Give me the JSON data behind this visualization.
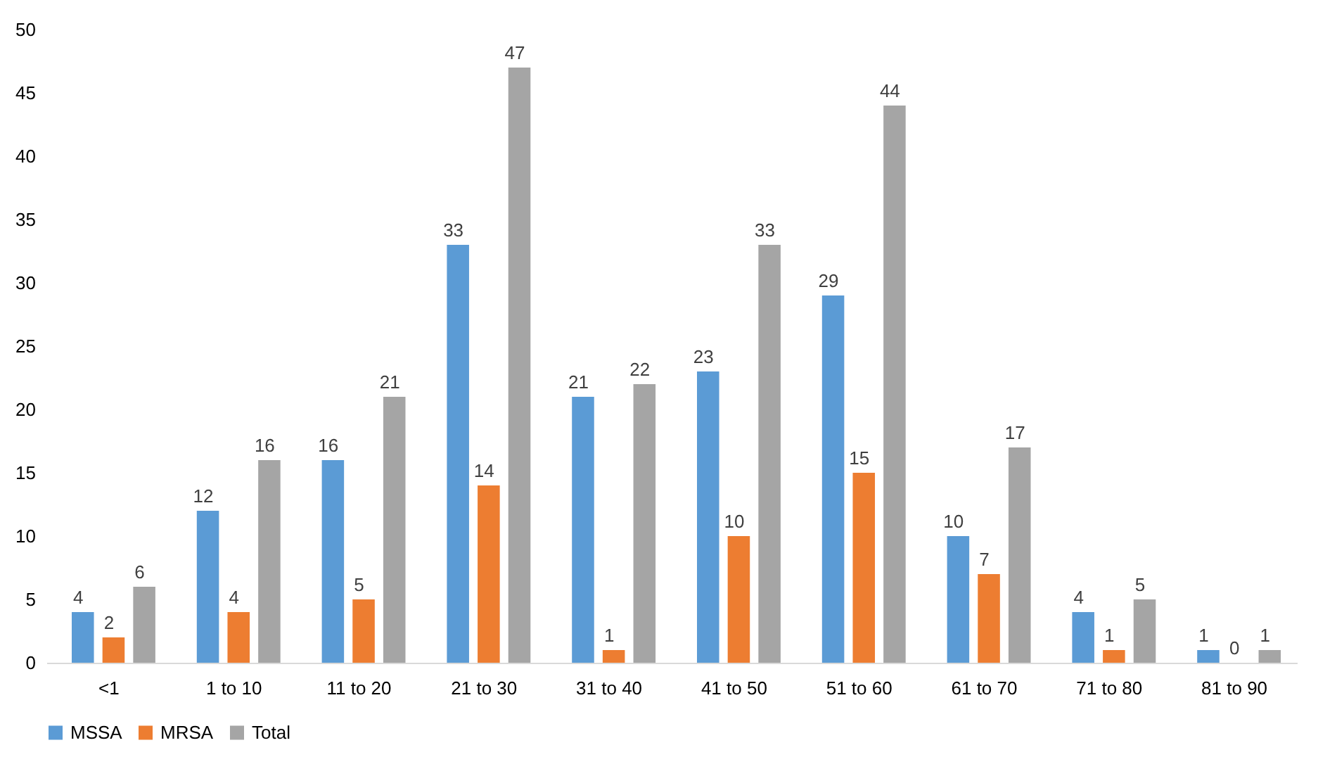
{
  "chart_data": {
    "type": "bar",
    "categories": [
      "<1",
      "1 to 10",
      "11 to 20",
      "21 to 30",
      "31 to 40",
      "41 to 50",
      "51 to 60",
      "61 to 70",
      "71 to 80",
      "81 to 90"
    ],
    "series": [
      {
        "name": "MSSA",
        "color": "#5b9bd5",
        "values": [
          4,
          12,
          16,
          33,
          21,
          23,
          29,
          10,
          4,
          1
        ]
      },
      {
        "name": "MRSA",
        "color": "#ed7d31",
        "values": [
          2,
          4,
          5,
          14,
          1,
          10,
          15,
          7,
          1,
          0
        ]
      },
      {
        "name": "Total",
        "color": "#a5a5a5",
        "values": [
          6,
          16,
          21,
          47,
          22,
          33,
          44,
          17,
          5,
          1
        ]
      }
    ],
    "ylim": [
      0,
      50
    ],
    "yticks": [
      0,
      5,
      10,
      15,
      20,
      25,
      30,
      35,
      40,
      45,
      50
    ],
    "grid": false,
    "legend": "bottom",
    "data_labels": true
  }
}
